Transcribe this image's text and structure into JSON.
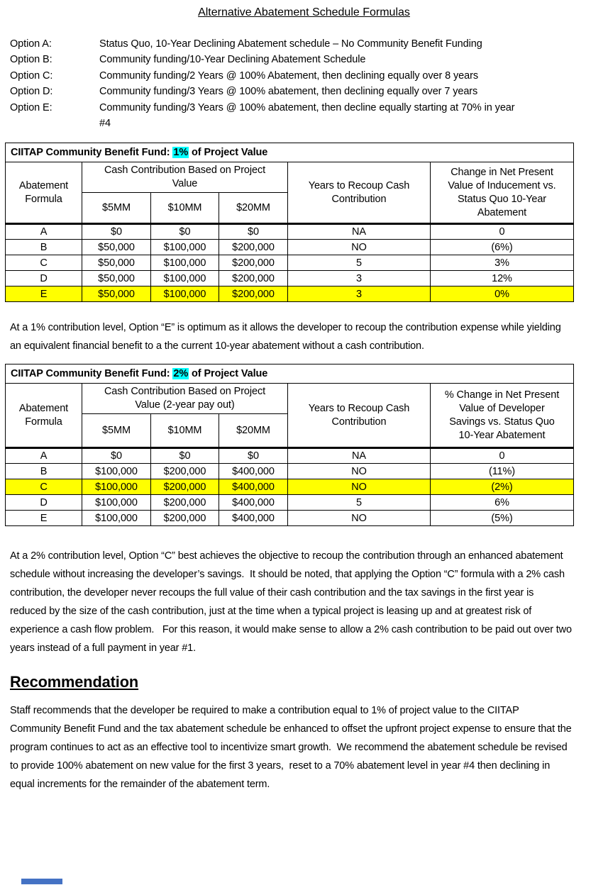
{
  "colors": {
    "highlight_cyan": "#00ffff",
    "highlight_yellow": "#ffff00",
    "marker_blue": "#4472c4"
  },
  "doc": {
    "title": "Alternative Abatement Schedule Formulas",
    "options": [
      {
        "label": "Option A:",
        "text": "Status Quo, 10-Year Declining Abatement schedule – No Community Benefit Funding"
      },
      {
        "label": "Option B:",
        "text": "Community funding/10-Year Declining Abatement Schedule"
      },
      {
        "label": "Option C:",
        "text": "Community funding/2 Years @ 100% Abatement, then declining equally over 8 years"
      },
      {
        "label": "Option D:",
        "text": "Community funding/3 Years @ 100% abatement, then declining equally over 7 years"
      },
      {
        "label": "Option E:",
        "text": "Community funding/3 Years @ 100% abatement, then decline equally starting at 70% in year #4"
      }
    ],
    "para_after_table1": "At a 1% contribution level, Option “E” is optimum as it allows the developer to recoup the contribution expense while yielding an equivalent financial benefit to a the current 10-year abatement without a cash contribution.",
    "para_after_table2": "At a 2% contribution level, Option “C” best achieves the objective to recoup the contribution through an enhanced abatement schedule without increasing the developer’s savings.  It should be noted, that applying the Option “C” formula with a 2% cash contribution, the developer never recoups the full value of their cash contribution and the tax savings in the first year is reduced by the size of the cash contribution, just at the time when a typical project is leasing up and at greatest risk of experience a cash flow problem.   For this reason, it would make sense to allow a 2% cash contribution to be paid out over two years instead of a full payment in year #1.",
    "recommendation_heading": "Recommendation",
    "recommendation_text": "Staff recommends that the developer be required to make a contribution equal to 1% of project value to the CIITAP Community Benefit Fund and the tax abatement schedule be enhanced to offset the upfront project expense to ensure that the program continues to act as an effective tool to incentivize smart growth.  We recommend the abatement schedule be revised to provide 100% abatement on new value for the first 3 years,  reset to a 70% abatement level in year #4 then declining in equal increments for the remainder of the abatement term."
  },
  "table1": {
    "title": {
      "prefix": "CIITAP Community Benefit Fund: ",
      "highlight": "1%",
      "suffix": " of Project Value"
    },
    "headers": {
      "formula": "Abatement Formula",
      "cash_group": "Cash Contribution Based on Project Value",
      "col_5mm": "$5MM",
      "col_10mm": "$10MM",
      "col_20mm": "$20MM",
      "years": "Years to Recoup Cash Contribution",
      "change": "Change in Net Present Value of Inducement vs. Status Quo 10-Year Abatement"
    },
    "rows": [
      {
        "cells": [
          "A",
          "$0",
          "$0",
          "$0",
          "NA",
          "0"
        ],
        "highlight": false
      },
      {
        "cells": [
          "B",
          "$50,000",
          "$100,000",
          "$200,000",
          "NO",
          "(6%)"
        ],
        "highlight": false
      },
      {
        "cells": [
          "C",
          "$50,000",
          "$100,000",
          "$200,000",
          "5",
          "3%"
        ],
        "highlight": false
      },
      {
        "cells": [
          "D",
          "$50,000",
          "$100,000",
          "$200,000",
          "3",
          "12%"
        ],
        "highlight": false
      },
      {
        "cells": [
          "E",
          "$50,000",
          "$100,000",
          "$200,000",
          "3",
          "0%"
        ],
        "highlight": true
      }
    ]
  },
  "table2": {
    "title": {
      "prefix": "CIITAP Community Benefit Fund: ",
      "highlight": "2%",
      "suffix": " of Project Value"
    },
    "headers": {
      "formula": "Abatement Formula",
      "cash_group": "Cash Contribution Based on Project Value (2-year pay out)",
      "col_5mm": "$5MM",
      "col_10mm": "$10MM",
      "col_20mm": "$20MM",
      "years": "Years to Recoup Cash Contribution",
      "change": "% Change in Net Present Value of Developer Savings vs. Status Quo 10-Year Abatement"
    },
    "rows": [
      {
        "cells": [
          "A",
          "$0",
          "$0",
          "$0",
          "NA",
          "0"
        ],
        "highlight": false
      },
      {
        "cells": [
          "B",
          "$100,000",
          "$200,000",
          "$400,000",
          "NO",
          "(11%)"
        ],
        "highlight": false
      },
      {
        "cells": [
          "C",
          "$100,000",
          "$200,000",
          "$400,000",
          "NO",
          "(2%)"
        ],
        "highlight": true
      },
      {
        "cells": [
          "D",
          "$100,000",
          "$200,000",
          "$400,000",
          "5",
          "6%"
        ],
        "highlight": false
      },
      {
        "cells": [
          "E",
          "$100,000",
          "$200,000",
          "$400,000",
          "NO",
          "(5%)"
        ],
        "highlight": false
      }
    ]
  }
}
